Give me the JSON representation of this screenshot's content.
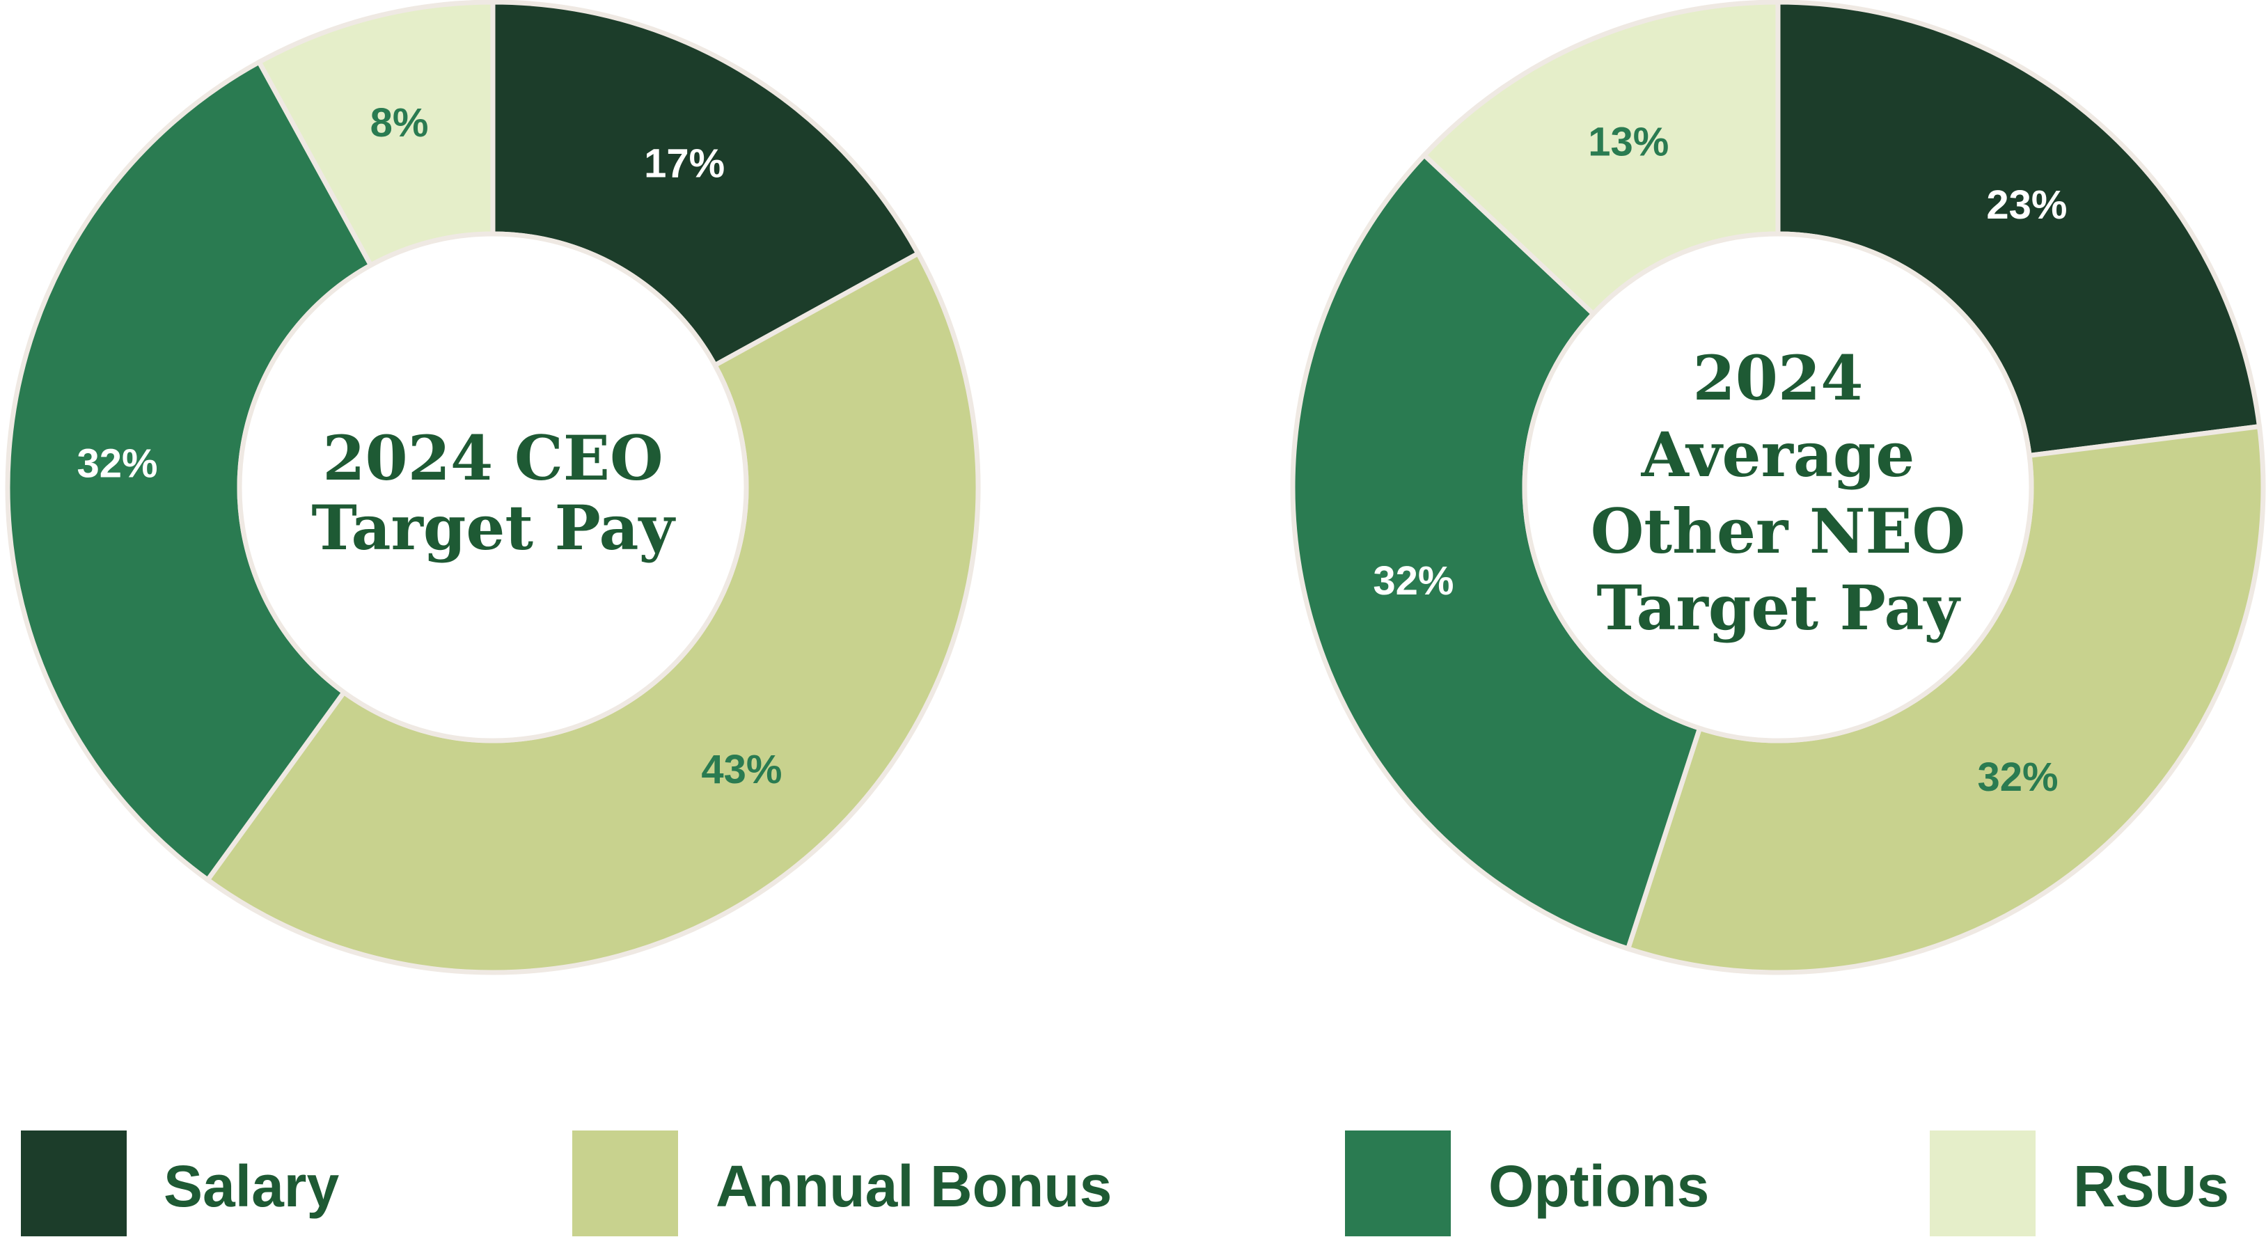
{
  "chart_data": [
    {
      "type": "pie",
      "variant": "donut",
      "center_title": [
        "2024 CEO",
        "Target Pay"
      ],
      "categories": [
        "Salary",
        "Annual Bonus",
        "Options",
        "RSUs"
      ],
      "values": [
        17,
        43,
        32,
        8
      ],
      "labels": [
        "17%",
        "43%",
        "32%",
        "8%"
      ]
    },
    {
      "type": "pie",
      "variant": "donut",
      "center_title": [
        "2024",
        "Average",
        "Other NEO",
        "Target Pay"
      ],
      "categories": [
        "Salary",
        "Annual Bonus",
        "Options",
        "RSUs"
      ],
      "values": [
        23,
        32,
        32,
        13
      ],
      "labels": [
        "23%",
        "32%",
        "32%",
        "13%"
      ]
    }
  ],
  "legend": {
    "placement": "bottom",
    "items": [
      {
        "label": "Salary",
        "color": "#1c3d2a"
      },
      {
        "label": "Annual Bonus",
        "color": "#c8d28e"
      },
      {
        "label": "Options",
        "color": "#2a7b51"
      },
      {
        "label": "RSUs",
        "color": "#e5eec9"
      }
    ]
  },
  "colors": {
    "Salary": "#1c3d2a",
    "Annual Bonus": "#c8d28e",
    "Options": "#2a7b51",
    "RSUs": "#e5eec9",
    "label_light": "#ffffff",
    "label_dark": "#2a7b51",
    "title": "#1e5a34",
    "slice_border": "#efe9e3"
  }
}
